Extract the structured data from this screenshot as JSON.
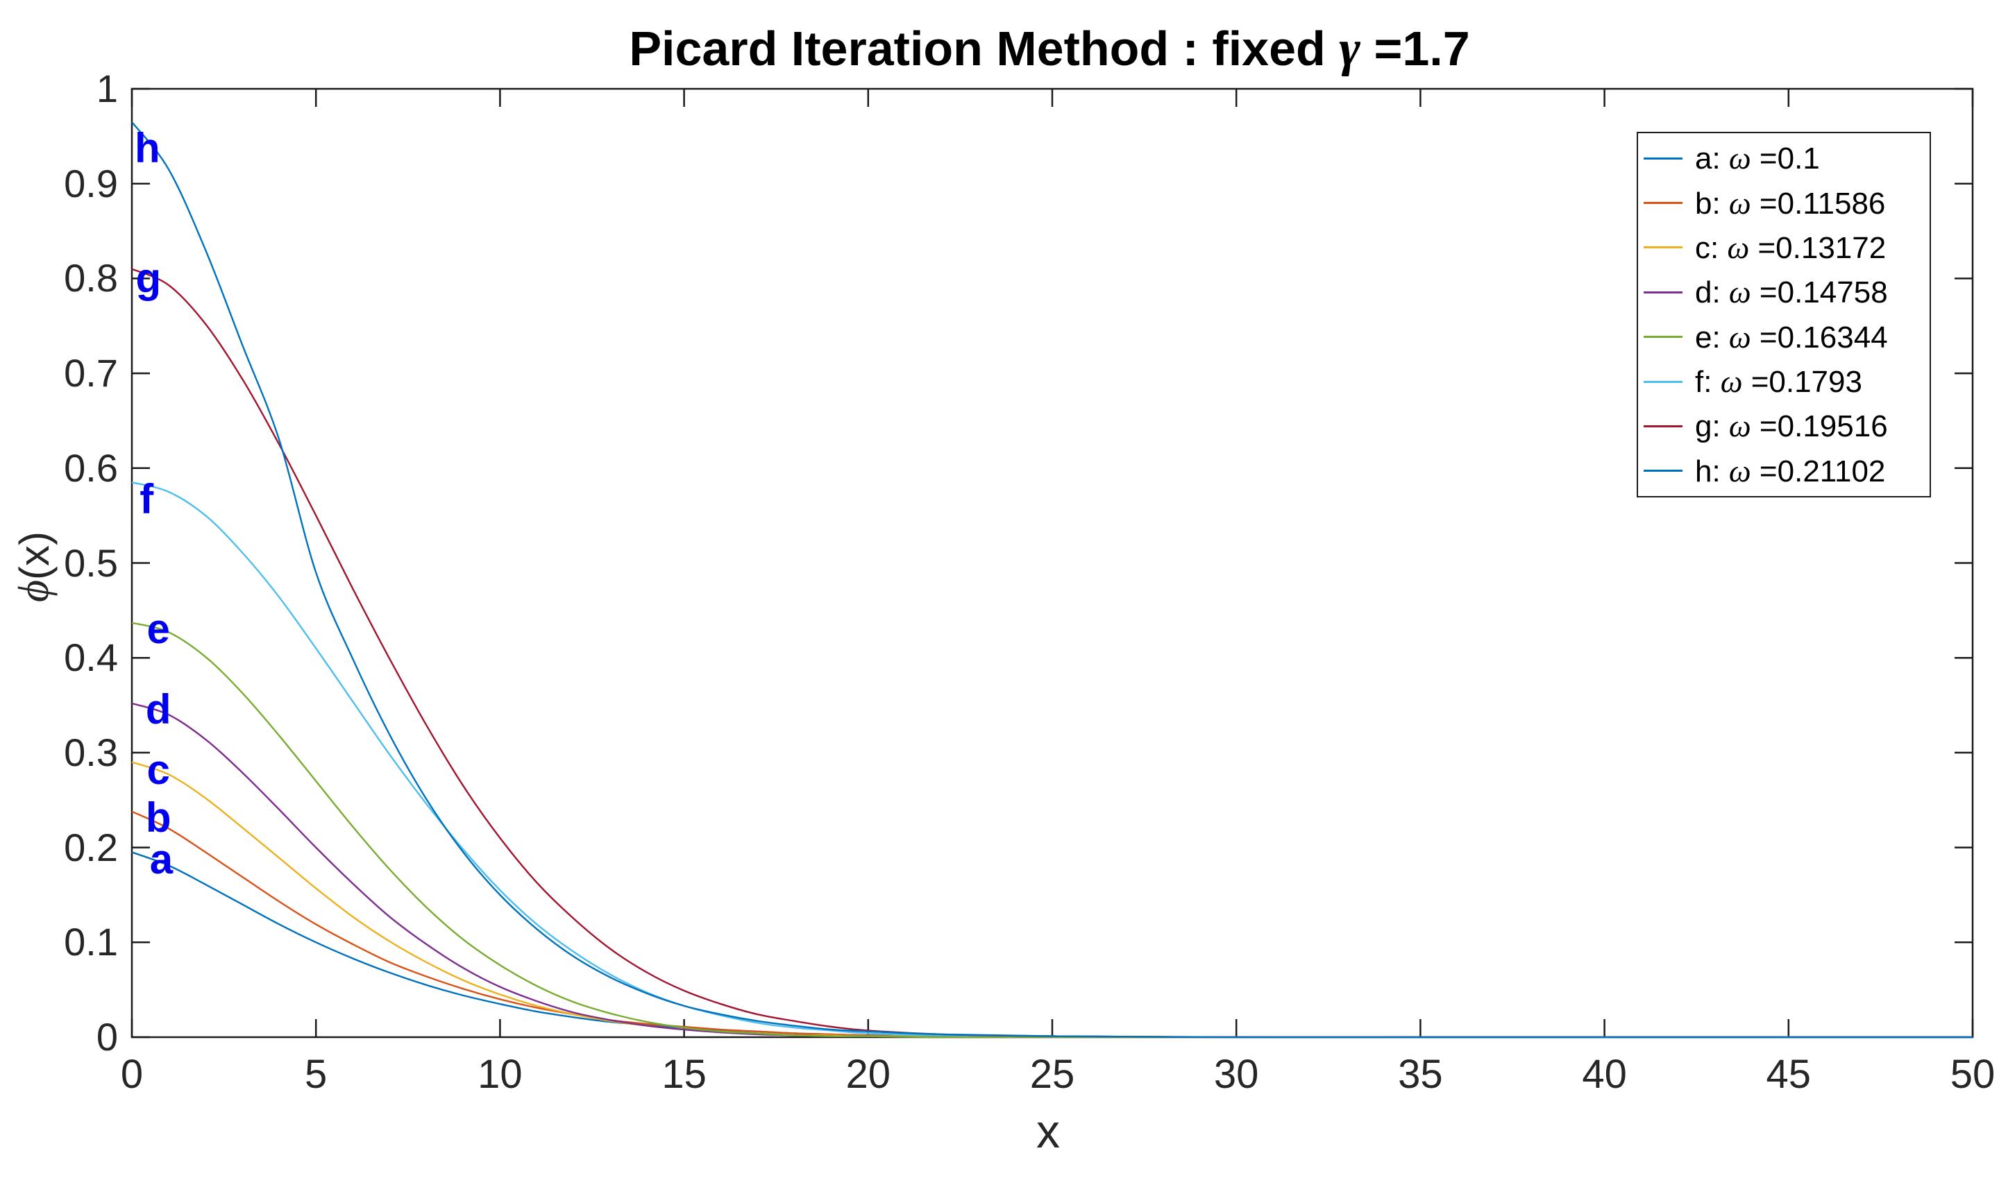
{
  "symbols": {
    "gamma": "γ",
    "omega": "ω",
    "phi": "ϕ"
  },
  "figure": {
    "title": {
      "main": "Picard Iteration Method : fixed ",
      "value": " =1.7"
    },
    "xlabel": "x",
    "ylabel_rest": "(x)"
  },
  "chart_data": {
    "type": "line",
    "title": "Picard Iteration Method : fixed γ =1.7",
    "xlabel": "x",
    "ylabel": "ϕ(x)",
    "xlim": [
      0,
      50
    ],
    "ylim": [
      0,
      1
    ],
    "grid": false,
    "legend_position": "northeast",
    "x_ticks": [
      0,
      5,
      10,
      15,
      20,
      25,
      30,
      35,
      40,
      45,
      50
    ],
    "y_ticks": [
      {
        "v": 0,
        "label": "0"
      },
      {
        "v": 0.1,
        "label": "0.1"
      },
      {
        "v": 0.2,
        "label": "0.2"
      },
      {
        "v": 0.3,
        "label": "0.3"
      },
      {
        "v": 0.4,
        "label": "0.4"
      },
      {
        "v": 0.5,
        "label": "0.5"
      },
      {
        "v": 0.6,
        "label": "0.6"
      },
      {
        "v": 0.7,
        "label": "0.7"
      },
      {
        "v": 0.8,
        "label": "0.8"
      },
      {
        "v": 0.9,
        "label": "0.9"
      },
      {
        "v": 1,
        "label": "1"
      }
    ],
    "x": [
      0,
      1,
      2,
      3,
      4,
      5,
      6,
      7,
      8,
      9,
      10,
      11,
      12,
      13,
      14,
      15,
      16,
      17,
      18,
      19,
      20,
      22,
      25,
      30,
      35,
      40,
      45,
      50
    ],
    "series": [
      {
        "name": "a",
        "omega": "0.1",
        "color": "#0072BD",
        "annotation": {
          "x": 0.8,
          "y": 0.187
        },
        "values": [
          0.195,
          0.181,
          0.161,
          0.14,
          0.119,
          0.1,
          0.083,
          0.068,
          0.055,
          0.044,
          0.035,
          0.027,
          0.021,
          0.016,
          0.013,
          0.01,
          0.007,
          0.006,
          0.004,
          0.003,
          0.002,
          0.001,
          0.001,
          0,
          0,
          0,
          0,
          0
        ]
      },
      {
        "name": "b",
        "omega": "0.11586",
        "color": "#D95319",
        "annotation": {
          "x": 0.72,
          "y": 0.231
        },
        "values": [
          0.238,
          0.22,
          0.195,
          0.169,
          0.143,
          0.119,
          0.098,
          0.079,
          0.064,
          0.051,
          0.04,
          0.031,
          0.024,
          0.018,
          0.014,
          0.011,
          0.008,
          0.006,
          0.004,
          0.003,
          0.002,
          0.001,
          0.001,
          0,
          0,
          0,
          0,
          0
        ]
      },
      {
        "name": "c",
        "omega": "0.13172",
        "color": "#EDB120",
        "annotation": {
          "x": 0.72,
          "y": 0.282
        },
        "values": [
          0.29,
          0.277,
          0.252,
          0.221,
          0.189,
          0.157,
          0.127,
          0.101,
          0.079,
          0.06,
          0.045,
          0.033,
          0.024,
          0.017,
          0.012,
          0.008,
          0.006,
          0.004,
          0.002,
          0.002,
          0.001,
          0.001,
          0,
          0,
          0,
          0,
          0,
          0
        ]
      },
      {
        "name": "d",
        "omega": "0.14758",
        "color": "#7E2F8E",
        "annotation": {
          "x": 0.72,
          "y": 0.345
        },
        "values": [
          0.352,
          0.34,
          0.314,
          0.279,
          0.24,
          0.2,
          0.162,
          0.127,
          0.098,
          0.073,
          0.053,
          0.038,
          0.026,
          0.018,
          0.012,
          0.008,
          0.005,
          0.003,
          0.002,
          0.001,
          0.001,
          0,
          0,
          0,
          0,
          0,
          0,
          0
        ]
      },
      {
        "name": "e",
        "omega": "0.16344",
        "color": "#77AC30",
        "annotation": {
          "x": 0.72,
          "y": 0.43
        },
        "values": [
          0.437,
          0.427,
          0.401,
          0.363,
          0.318,
          0.27,
          0.222,
          0.177,
          0.137,
          0.103,
          0.076,
          0.054,
          0.037,
          0.025,
          0.016,
          0.01,
          0.006,
          0.004,
          0.002,
          0.001,
          0.001,
          0,
          0,
          0,
          0,
          0,
          0,
          0
        ]
      },
      {
        "name": "f",
        "omega": "0.1793",
        "color": "#4DBEEE",
        "annotation": {
          "x": 0.4,
          "y": 0.567
        },
        "values": [
          0.585,
          0.575,
          0.55,
          0.511,
          0.464,
          0.41,
          0.354,
          0.298,
          0.246,
          0.198,
          0.155,
          0.119,
          0.09,
          0.066,
          0.047,
          0.033,
          0.023,
          0.015,
          0.01,
          0.007,
          0.004,
          0.002,
          0.001,
          0,
          0,
          0,
          0,
          0
        ]
      },
      {
        "name": "g",
        "omega": "0.19516",
        "color": "#A2142F",
        "annotation": {
          "x": 0.45,
          "y": 0.8
        },
        "values": [
          0.81,
          0.793,
          0.752,
          0.694,
          0.625,
          0.55,
          0.473,
          0.399,
          0.329,
          0.265,
          0.21,
          0.163,
          0.125,
          0.093,
          0.068,
          0.049,
          0.035,
          0.024,
          0.017,
          0.011,
          0.007,
          0.003,
          0.001,
          0,
          0,
          0,
          0,
          0
        ]
      },
      {
        "name": "h",
        "omega": "0.21102",
        "color": "#0072BD",
        "annotation": {
          "x": 0.42,
          "y": 0.937
        },
        "values": [
          0.965,
          0.915,
          0.83,
          0.73,
          0.63,
          0.49,
          0.399,
          0.319,
          0.251,
          0.195,
          0.15,
          0.114,
          0.085,
          0.063,
          0.046,
          0.033,
          0.024,
          0.017,
          0.012,
          0.008,
          0.006,
          0.003,
          0.001,
          0,
          0,
          0,
          0,
          0
        ]
      }
    ]
  }
}
